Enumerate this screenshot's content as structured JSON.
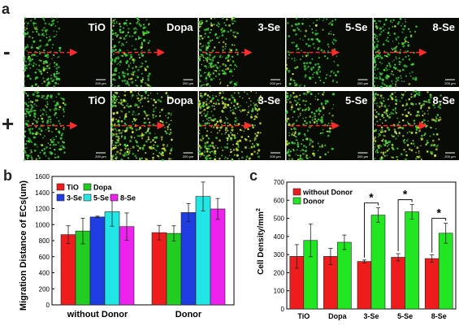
{
  "panels": {
    "a": "a",
    "b": "b",
    "c": "c"
  },
  "microscopy": {
    "row_labels": [
      "-",
      "+"
    ],
    "samples": [
      "TiO",
      "Dopa",
      "3-Se",
      "5-Se",
      "8-Se"
    ],
    "scale_bars": [
      [
        "200 μm",
        "200 μm",
        "200 μm",
        "200 μm",
        "200 μm"
      ],
      [
        "200 μm",
        "200 μm",
        "200 μm",
        "200 μm",
        "200 μm"
      ]
    ],
    "colors": {
      "background": "#080b06",
      "cells": "#3bd43b",
      "cells_bright": "#c9e83a",
      "arrow": "#ff2a2a"
    }
  },
  "chart_data": [
    {
      "type": "bar",
      "panel": "b",
      "categories": [
        "without Donor",
        "Donor"
      ],
      "ylabel": "Migration Distance of ECs(um)",
      "ylim": [
        0,
        1600
      ],
      "ticks": [
        0,
        200,
        400,
        600,
        800,
        1000,
        1200,
        1400,
        1600
      ],
      "legend_placement": "top-left",
      "series": [
        {
          "name": "TiO",
          "color": "#ee1c1c",
          "values": [
            875,
            900
          ],
          "errors": [
            110,
            90
          ]
        },
        {
          "name": "Dopa",
          "color": "#22cc22",
          "values": [
            920,
            890
          ],
          "errors": [
            160,
            95
          ]
        },
        {
          "name": "3-Se",
          "color": "#1f3de0",
          "values": [
            1095,
            1150
          ],
          "errors": [
            10,
            110
          ]
        },
        {
          "name": "5-Se",
          "color": "#22e6e6",
          "values": [
            1160,
            1350
          ],
          "errors": [
            180,
            180
          ]
        },
        {
          "name": "8-Se",
          "color": "#ee22ee",
          "values": [
            975,
            1195
          ],
          "errors": [
            170,
            130
          ]
        }
      ]
    },
    {
      "type": "bar",
      "panel": "c",
      "categories": [
        "TiO",
        "Dopa",
        "3-Se",
        "5-Se",
        "8-Se"
      ],
      "ylabel": "Cell Density/mm",
      "ylabel_superscript": "2",
      "ylim": [
        0,
        700
      ],
      "ticks": [
        0,
        100,
        200,
        300,
        400,
        500,
        600,
        700
      ],
      "legend_placement": "top-left",
      "significance": "*",
      "significant_categories": [
        "3-Se",
        "5-Se",
        "8-Se"
      ],
      "series": [
        {
          "name": "without Donor",
          "color": "#ee1c1c",
          "values": [
            290,
            290,
            262,
            285,
            278
          ],
          "errors": [
            65,
            45,
            8,
            20,
            20
          ]
        },
        {
          "name": "Donor",
          "color": "#22e622",
          "values": [
            378,
            368,
            518,
            536,
            418
          ],
          "errors": [
            90,
            40,
            40,
            40,
            55
          ]
        }
      ]
    }
  ]
}
